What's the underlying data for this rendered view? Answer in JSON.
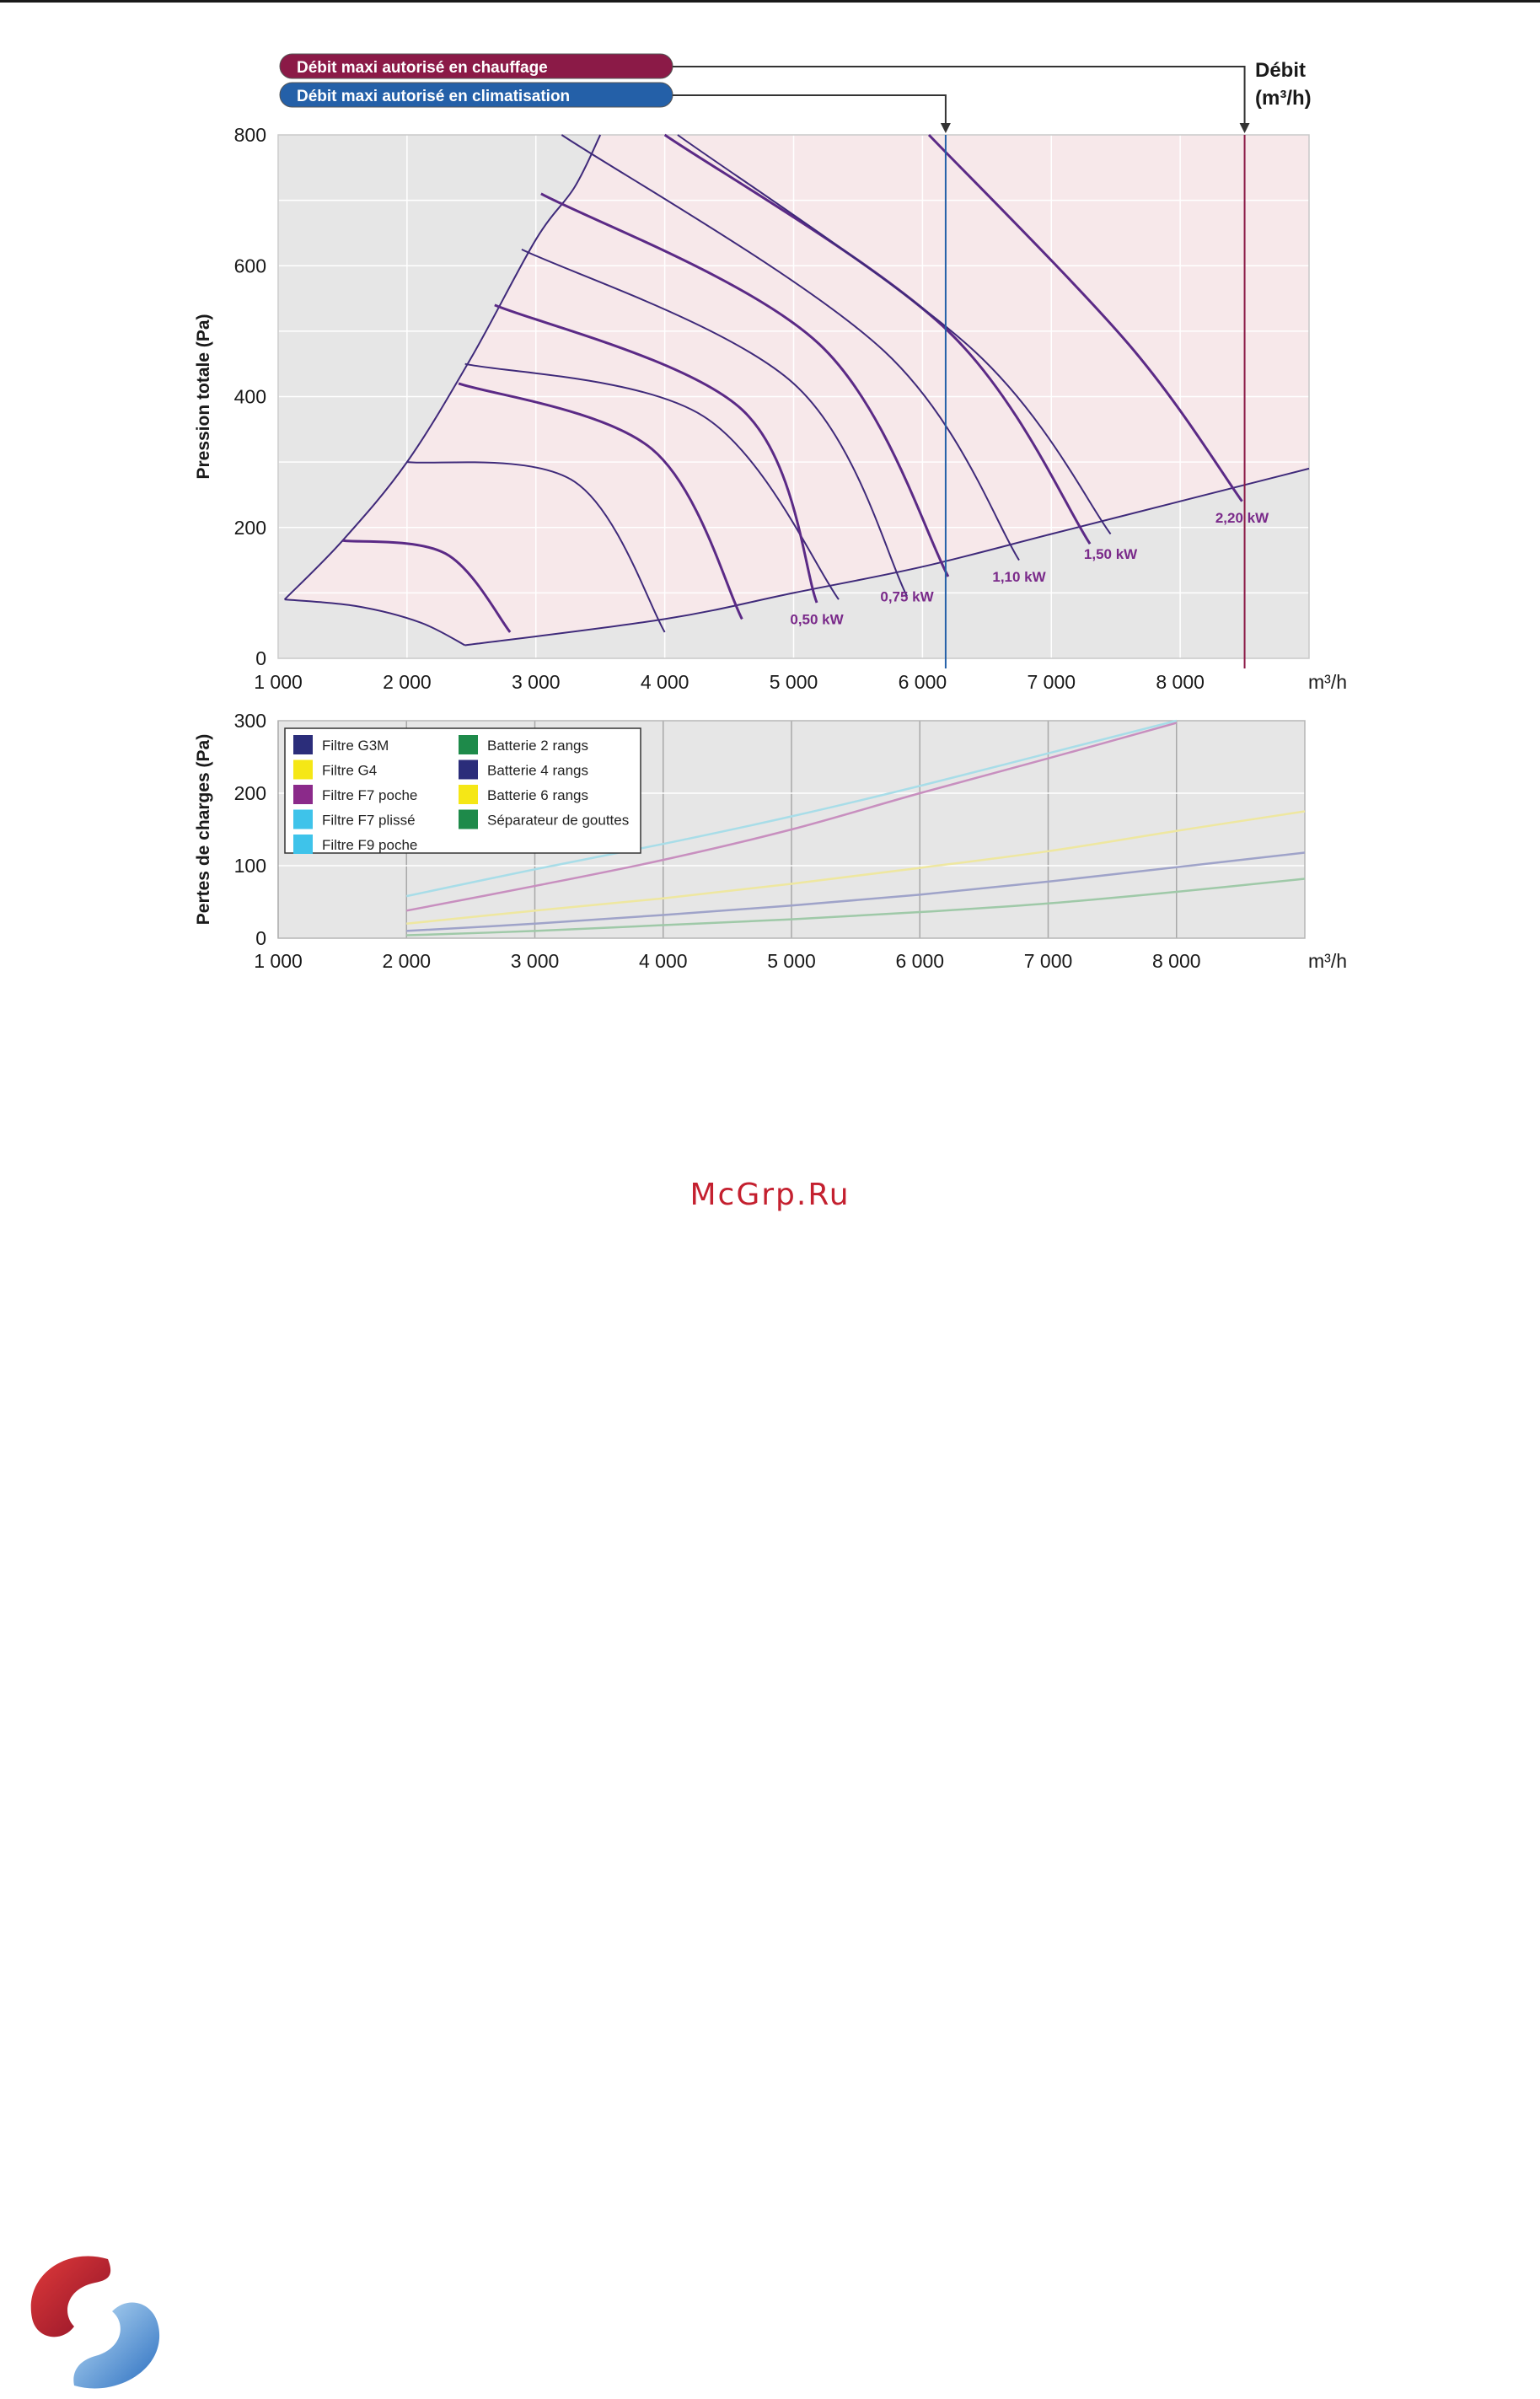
{
  "watermark": "McGrp.Ru",
  "colors": {
    "plot_bg": "#e6e6e6",
    "zone": "#f7e8ea",
    "curve": "#3f2a7a",
    "label_kw": "#7a2a8a",
    "heating_line": "#8b1a47",
    "cooling_line": "#2460a8"
  },
  "chart_data": [
    {
      "type": "line",
      "title": "",
      "xlabel": "m³/h",
      "ylabel": "Pression totale (Pa)",
      "xlim": [
        1000,
        9000
      ],
      "ylim": [
        0,
        800
      ],
      "x_ticks": [
        "1 000",
        "2 000",
        "3 000",
        "4 000",
        "5 000",
        "6 000",
        "7 000",
        "8 000"
      ],
      "y_ticks": [
        "0",
        "200",
        "400",
        "600",
        "800"
      ],
      "grid": true,
      "annotations": {
        "heating_label": "Débit maxi autorisé en chauffage",
        "cooling_label": "Débit maxi autorisé en climatisation",
        "debit_label": "Débit",
        "debit_unit": "(m³/h)",
        "heating_max_flow": 8500,
        "cooling_max_flow": 6180
      },
      "envelope": {
        "left": {
          "x": [
            1050,
            1500,
            2000,
            2500,
            3000,
            3300,
            3500
          ],
          "y": [
            90,
            180,
            300,
            460,
            640,
            720,
            800
          ]
        },
        "bottom": {
          "x": [
            1050,
            1600,
            2100,
            2450
          ],
          "y": [
            90,
            80,
            55,
            20
          ]
        },
        "min": {
          "x": [
            2450,
            4000,
            5000,
            6000,
            7000,
            8000,
            9000
          ],
          "y": [
            20,
            60,
            100,
            140,
            190,
            240,
            290
          ]
        }
      },
      "power_labels": [
        {
          "text": "0,50 kW",
          "x": 5180,
          "y": 60
        },
        {
          "text": "0,75 kW",
          "x": 5880,
          "y": 95
        },
        {
          "text": "1,10 kW",
          "x": 6750,
          "y": 125
        },
        {
          "text": "1,50 kW",
          "x": 7460,
          "y": 160
        },
        {
          "text": "2,20 kW",
          "x": 8480,
          "y": 215
        }
      ],
      "series": [
        {
          "x": [
            1500,
            2300,
            2800
          ],
          "y": [
            180,
            160,
            40
          ]
        },
        {
          "x": [
            2000,
            3300,
            4000
          ],
          "y": [
            300,
            270,
            40
          ]
        },
        {
          "x": [
            2400,
            3900,
            4600
          ],
          "y": [
            420,
            320,
            60
          ]
        },
        {
          "x": [
            2450,
            4300,
            5350
          ],
          "y": [
            450,
            370,
            90
          ]
        },
        {
          "x": [
            2680,
            4600,
            5180
          ],
          "y": [
            540,
            380,
            85
          ]
        },
        {
          "x": [
            2890,
            5000,
            5880
          ],
          "y": [
            625,
            420,
            95
          ]
        },
        {
          "x": [
            3040,
            5200,
            6200
          ],
          "y": [
            710,
            480,
            125
          ]
        },
        {
          "x": [
            3200,
            5700,
            6750
          ],
          "y": [
            800,
            470,
            150
          ]
        },
        {
          "x": [
            4000,
            6200,
            7300
          ],
          "y": [
            800,
            500,
            175
          ]
        },
        {
          "x": [
            4100,
            6400,
            7460
          ],
          "y": [
            800,
            470,
            190
          ]
        },
        {
          "x": [
            6050,
            7600,
            8480
          ],
          "y": [
            800,
            480,
            240
          ]
        }
      ]
    },
    {
      "type": "line",
      "title": "",
      "xlabel": "m³/h",
      "ylabel": "Pertes de charges (Pa)",
      "xlim": [
        1000,
        9000
      ],
      "ylim": [
        0,
        300
      ],
      "x_ticks": [
        "1 000",
        "2 000",
        "3 000",
        "4 000",
        "5 000",
        "6 000",
        "7 000",
        "8 000"
      ],
      "y_ticks": [
        "0",
        "100",
        "200",
        "300"
      ],
      "grid": true,
      "legend_position": "top-left",
      "legend": [
        {
          "name": "Filtre G3M",
          "color": "#2b2d7a"
        },
        {
          "name": "Filtre G4",
          "color": "#f5e716"
        },
        {
          "name": "Filtre F7 poche",
          "color": "#8b2a8a"
        },
        {
          "name": "Filtre F7 plissé",
          "color": "#3ec3ea"
        },
        {
          "name": "Filtre F9 poche",
          "color": "#3ec3ea"
        },
        {
          "name": "Batterie 2 rangs",
          "color": "#1e8a4a"
        },
        {
          "name": "Batterie 4 rangs",
          "color": "#2b2d7a"
        },
        {
          "name": "Batterie 6 rangs",
          "color": "#f5e716"
        },
        {
          "name": "Séparateur de gouttes",
          "color": "#1e8a4a"
        }
      ],
      "series": [
        {
          "color": "#a8dde8",
          "x": [
            2000,
            3000,
            4000,
            5000,
            6000,
            7000,
            8000
          ],
          "y": [
            58,
            95,
            130,
            168,
            210,
            255,
            300
          ]
        },
        {
          "color": "#c88fbf",
          "x": [
            2000,
            3000,
            4000,
            5000,
            6000,
            7000,
            8000
          ],
          "y": [
            38,
            72,
            108,
            150,
            200,
            248,
            297
          ]
        },
        {
          "color": "#eee7a0",
          "x": [
            2000,
            3000,
            4000,
            5000,
            6000,
            7000,
            8000,
            9000
          ],
          "y": [
            20,
            38,
            55,
            75,
            97,
            120,
            148,
            175
          ]
        },
        {
          "color": "#9fa3c9",
          "x": [
            2000,
            3000,
            4000,
            5000,
            6000,
            7000,
            8000,
            9000
          ],
          "y": [
            10,
            20,
            32,
            45,
            60,
            78,
            98,
            118
          ]
        },
        {
          "color": "#9fc9a8",
          "x": [
            2000,
            3000,
            4000,
            5000,
            6000,
            7000,
            8000,
            9000
          ],
          "y": [
            4,
            10,
            18,
            26,
            36,
            48,
            64,
            82
          ]
        }
      ]
    }
  ]
}
